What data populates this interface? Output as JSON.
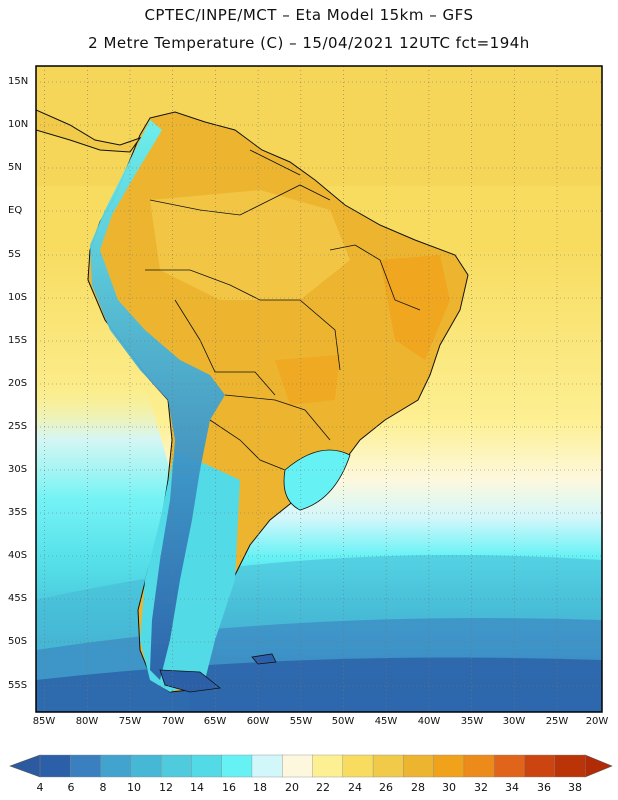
{
  "header": {
    "line1": "CPTEC/INPE/MCT –  Eta Model 15km – GFS",
    "line2": "2 Metre Temperature (C) – 15/04/2021 12UTC fct=194h"
  },
  "map": {
    "lat_labels": [
      "15N",
      "10N",
      "5N",
      "EQ",
      "5S",
      "10S",
      "15S",
      "20S",
      "25S",
      "30S",
      "35S",
      "40S",
      "45S",
      "50S",
      "55S"
    ],
    "lon_labels": [
      "85W",
      "80W",
      "75W",
      "70W",
      "65W",
      "60W",
      "55W",
      "50W",
      "45W",
      "40W",
      "35W",
      "30W",
      "25W",
      "20W"
    ]
  },
  "colorbar": {
    "labels": [
      "4",
      "6",
      "8",
      "10",
      "12",
      "14",
      "16",
      "18",
      "20",
      "22",
      "24",
      "26",
      "28",
      "30",
      "32",
      "34",
      "36",
      "38"
    ],
    "colors": [
      "#2b5fa8",
      "#3a80c0",
      "#43a3cf",
      "#46b8d6",
      "#4fcbdd",
      "#52dbe6",
      "#66f2f5",
      "#d2f7fb",
      "#fdf8dd",
      "#fdf093",
      "#f7dc60",
      "#f2ca4a",
      "#edb52f",
      "#f0a21a",
      "#ec8a1a",
      "#e0651a",
      "#cc4410",
      "#bb3408"
    ]
  }
}
